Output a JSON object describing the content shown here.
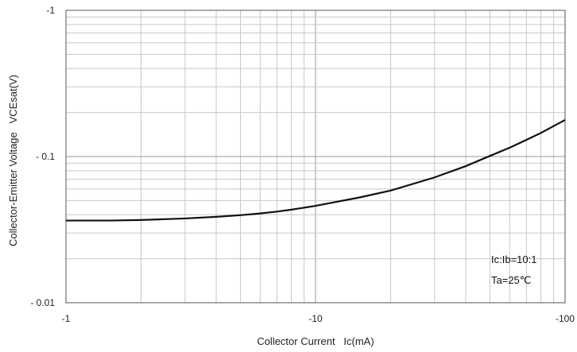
{
  "chart_data": {
    "type": "line",
    "xlabel": "Collector Current   Ic(mA)",
    "ylabel": "Collector-Emitter Voltage   VCEsat(V)",
    "xscale": "log",
    "yscale": "log",
    "xlim": [
      -1,
      -100
    ],
    "ylim": [
      -0.01,
      -1
    ],
    "x_tick_labels": [
      "-1",
      "-10",
      "-100"
    ],
    "y_tick_labels": [
      "-1",
      "- 0.1",
      "- 0.01"
    ],
    "grid": true,
    "annotations": [
      "Ic:Ib=10:1",
      "Ta=25℃"
    ],
    "series": [
      {
        "x": [
          -1,
          -1.5,
          -2,
          -3,
          -4,
          -5,
          -6,
          -7,
          -8,
          -10,
          -15,
          -20,
          -30,
          -40,
          -50,
          -60,
          -70,
          -80,
          -100
        ],
        "y": [
          -0.0365,
          -0.0365,
          -0.0368,
          -0.0377,
          -0.0387,
          -0.0397,
          -0.0408,
          -0.042,
          -0.0433,
          -0.046,
          -0.0525,
          -0.0585,
          -0.072,
          -0.086,
          -0.101,
          -0.115,
          -0.13,
          -0.145,
          -0.178
        ]
      }
    ]
  }
}
